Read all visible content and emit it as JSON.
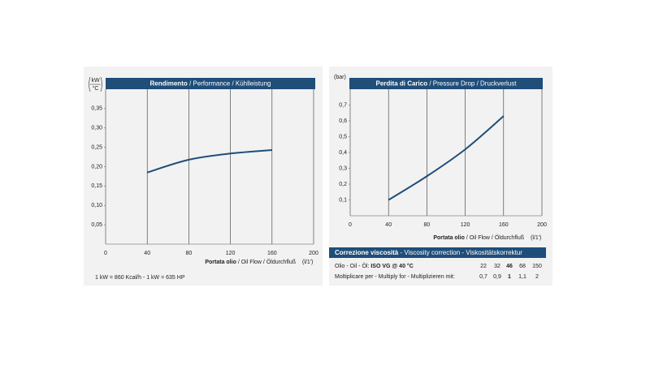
{
  "chart_data": [
    {
      "type": "line",
      "title_bold": "Rendimento",
      "title": "/ Performance / Kühlleistung",
      "y_unit_top": "kW",
      "y_unit_bottom": "°C",
      "x_label_bold": "Portata olio",
      "x_label": "/ Oil Flow / Öldurchfluß",
      "x_unit": "(l/1')",
      "x": [
        40,
        80,
        120,
        160
      ],
      "values": [
        0.185,
        0.218,
        0.234,
        0.243
      ],
      "color": "#1f4e79",
      "xlim": [
        0,
        200
      ],
      "xticks": [
        0,
        40,
        80,
        120,
        160,
        200
      ],
      "ylim": [
        0,
        0.4
      ],
      "yticks": [
        {
          "value": 0.05,
          "label": "0,05"
        },
        {
          "value": 0.1,
          "label": "0,10"
        },
        {
          "value": 0.15,
          "label": "0,15"
        },
        {
          "value": 0.2,
          "label": "0,20"
        },
        {
          "value": 0.25,
          "label": "0,25"
        },
        {
          "value": 0.3,
          "label": "0,30"
        },
        {
          "value": 0.35,
          "label": "0,35"
        }
      ],
      "note": "1 kW = 860 Kcal/h - 1 kW = 635 HP"
    },
    {
      "type": "line",
      "title_bold": "Perdita di Carico",
      "title": "/ Pressure Drop / Druckverlust",
      "y_unit": "(bar)",
      "x_label_bold": "Portata olio",
      "x_label": "/ Oil Flow / Öldurchfluß",
      "x_unit": "(l/1')",
      "x": [
        40,
        80,
        120,
        160
      ],
      "values": [
        0.1,
        0.25,
        0.42,
        0.63
      ],
      "color": "#1f4e79",
      "xlim": [
        0,
        200
      ],
      "xticks": [
        0,
        40,
        80,
        120,
        160,
        200
      ],
      "ylim": [
        0,
        0.8
      ],
      "yticks": [
        {
          "value": 0.1,
          "label": "0,1"
        },
        {
          "value": 0.2,
          "label": "0,2"
        },
        {
          "value": 0.3,
          "label": "0,3"
        },
        {
          "value": 0.4,
          "label": "0,4"
        },
        {
          "value": 0.5,
          "label": "0,5"
        },
        {
          "value": 0.6,
          "label": "0,6"
        },
        {
          "value": 0.7,
          "label": "0,7"
        }
      ]
    }
  ],
  "viscosity_table": {
    "title_bold": "Correzione viscosità",
    "title": "- Viscosity correction - Viskositätskorrektur",
    "rows": [
      {
        "label_plain": "Olio - Oil - Öl:",
        "label_bold": "ISO VG @ 40 °C",
        "cells": [
          "22",
          "32",
          "46",
          "68",
          "150"
        ]
      },
      {
        "label_plain": "Moltiplicare per - Multiply for - Multiplizieren mit:",
        "cells": [
          "0,7",
          "0,9",
          "1",
          "1,1",
          "2"
        ]
      }
    ]
  }
}
